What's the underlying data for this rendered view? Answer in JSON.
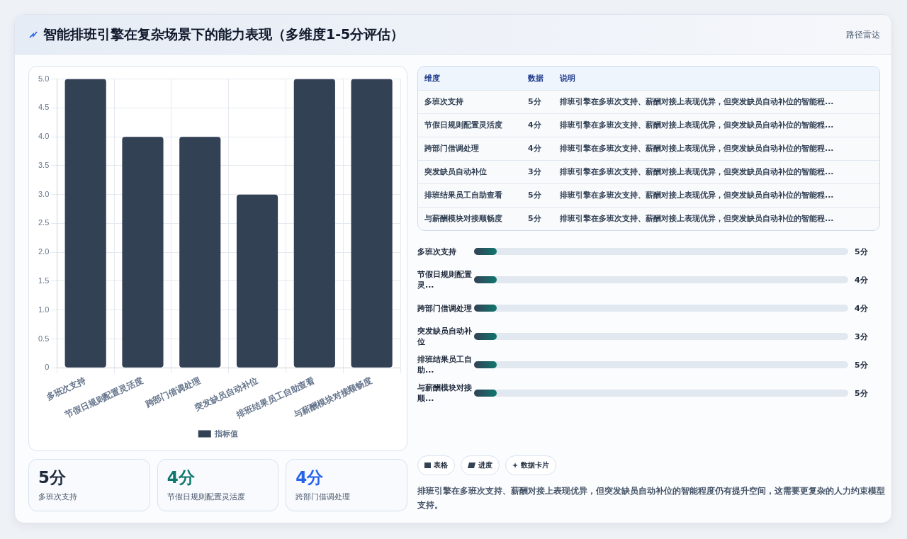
{
  "chart_data": [
    {
      "type": "bar",
      "title": "智能排班引擎在复杂场景下的能力表现（多维度1-5分评估）",
      "categories": [
        "多班次支持",
        "节假日规则配置灵活度",
        "跨部门借调处理",
        "突发缺员自动补位",
        "排班结果员工自助查看",
        "与薪酬模块对接顺畅度"
      ],
      "series": [
        {
          "name": "指标值",
          "color": "#334155",
          "values": [
            5,
            4,
            4,
            3,
            5,
            5
          ]
        }
      ],
      "ylim": [
        0,
        5
      ],
      "yticks": [
        0,
        {
          "value": 0.5,
          "label": "0.5"
        },
        {
          "value": 1,
          "label": "1.0"
        },
        {
          "value": 1.5,
          "label": "1.5"
        },
        {
          "value": 2,
          "label": "2.0"
        },
        {
          "value": 2.5,
          "label": "2.5"
        },
        {
          "value": 3,
          "label": "3.0"
        },
        {
          "value": 3.5,
          "label": "3.5"
        },
        {
          "value": 4,
          "label": "4.0"
        },
        {
          "value": 4.5,
          "label": "4.5"
        },
        {
          "value": 5,
          "label": "5.0"
        }
      ],
      "grid": true,
      "legend": "bottom"
    },
    {
      "type": "other",
      "subtitle": "路径雷达",
      "categories": [
        "多班次支持",
        "节假日规则配置灵活度",
        "跨部门借调处理",
        "突发缺员自动补位",
        "排班结果员工自助查看",
        "与薪酬模块对接顺畅度"
      ],
      "value_labels": [
        "5分",
        "4分",
        "4分",
        "3分",
        "5分",
        "5分"
      ],
      "annotations": [
        "维度",
        "数据",
        "说明",
        "排班引擎在多班次支持、薪酬对接上表现优异，但突发缺员自动补位的智能程...",
        "排班引擎在多班次支持、薪酬对接上表现优异，但突发缺员自动补位的智能程...",
        "排班引擎在多班次支持、薪酬对接上表现优异，但突发缺员自动补位的智能程...",
        "排班引擎在多班次支持、薪酬对接上表现优异，但突发缺员自动补位的智能程...",
        "排班引擎在多班次支持、薪酬对接上表现优异，但突发缺员自动补位的智能程...",
        "排班引擎在多班次支持、薪酬对接上表现优异，但突发缺员自动补位的智能程..."
      ]
    },
    {
      "type": "other",
      "categories": [
        "多班次支持",
        "节假日规则配置灵...",
        "跨部门借调处理",
        "突发缺员自动补位",
        "排班结果员工自助...",
        "与薪酬模块对接顺..."
      ],
      "value_labels": [
        "5分",
        "4分",
        "4分",
        "3分",
        "5分",
        "5分"
      ],
      "annotations": [
        "表格",
        "进度",
        "数据卡片",
        "排班引擎在多班次支持、薪酬对接上表现优异，但突发缺员自动补位的智能程度仍有提升空间，这需要更复杂的人力约束模型支持。"
      ]
    },
    {
      "type": "other",
      "categories": [
        "多班次支持",
        "节假日规则配置灵活度",
        "跨部门借调处理"
      ],
      "value_labels": [
        "5分",
        "4分",
        "4分"
      ]
    }
  ]
}
